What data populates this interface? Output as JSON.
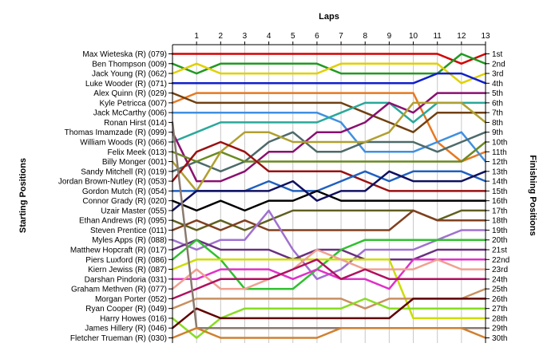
{
  "chart_data": {
    "type": "line",
    "title": "",
    "xlabel": "Laps",
    "ylabel_left": "Starting Positions",
    "ylabel_right": "Finishing Positions",
    "x": [
      0,
      1,
      2,
      3,
      4,
      5,
      6,
      7,
      8,
      9,
      10,
      11,
      12,
      13
    ],
    "x_tick_labels": [
      "1",
      "2",
      "3",
      "4",
      "5",
      "6",
      "7",
      "8",
      "9",
      "10",
      "11",
      "12",
      "13"
    ],
    "xlim": [
      0,
      13
    ],
    "ylim": [
      1,
      30
    ],
    "y_inverted": true,
    "grid": "vertical",
    "starting_labels": [
      "Max Wieteska (R) (079)",
      "Ben Thompson (009)",
      "Jack Young (R) (062)",
      "Luke Wooder (R) (071)",
      "Alex Quinn (R) (029)",
      "Kyle Petricca (007)",
      "Jack McCarthy (006)",
      "Ronan Hirst (014)",
      "Thomas Imamzade (R) (099)",
      "William Woods (R) (066)",
      "Felix Meek (013)",
      "Billy Monger (001)",
      "Sandy Mitchell (R) (019)",
      "Jordan Brown-Nutley (R) (053)",
      "Gordon Mutch (R) (054)",
      "Connor Grady (R) (020)",
      "Uzair Master (055)",
      "Ethan Andrews (R) (095)",
      "Steven Prentice (011)",
      "Myles Apps (R) (088)",
      "Matthew Hopcraft (R) (017)",
      "Piers Luxford (R) (086)",
      "Kiern Jewiss (R) (087)",
      "Darshan Pindoria (031)",
      "Graham Methven (R) (077)",
      "Morgan Porter (052)",
      "Ryan Cooper (R) (049)",
      "Harry Howes (016)",
      "James Hillery (R) (046)",
      "Fletcher Trueman (R) (030)"
    ],
    "finishing_labels": [
      "1st",
      "2nd",
      "3rd",
      "4th",
      "5th",
      "6th",
      "7th",
      "8th",
      "9th",
      "10th",
      "11th",
      "12th",
      "13th",
      "14th",
      "15th",
      "16th",
      "17th",
      "18th",
      "19th",
      "20th",
      "21st",
      "22nd",
      "23rd",
      "24th",
      "25th",
      "26th",
      "27th",
      "28th",
      "29th",
      "30th"
    ],
    "series": [
      {
        "color": "#d40000",
        "values": [
          1,
          1,
          1,
          1,
          1,
          1,
          1,
          1,
          1,
          1,
          1,
          1,
          2,
          1
        ]
      },
      {
        "color": "#229922",
        "values": [
          2,
          3,
          2,
          2,
          2,
          2,
          2,
          3,
          3,
          3,
          3,
          3,
          1,
          2
        ]
      },
      {
        "color": "#e0d000",
        "values": [
          3,
          2,
          3,
          3,
          3,
          3,
          3,
          2,
          2,
          2,
          2,
          2,
          4,
          3
        ]
      },
      {
        "color": "#1020cc",
        "values": [
          4,
          4,
          4,
          4,
          4,
          4,
          4,
          4,
          4,
          4,
          4,
          3,
          3,
          4
        ]
      },
      {
        "color": "#e87820",
        "values": [
          6,
          5,
          5,
          5,
          5,
          5,
          5,
          5,
          5,
          5,
          5,
          10,
          12,
          11
        ]
      },
      {
        "color": "#704010",
        "values": [
          5,
          6,
          6,
          6,
          6,
          6,
          6,
          6,
          7,
          8,
          9,
          7,
          7,
          7
        ]
      },
      {
        "color": "#4090e0",
        "values": [
          7,
          7,
          7,
          7,
          7,
          7,
          7,
          8,
          11,
          11,
          11,
          10,
          9,
          12
        ]
      },
      {
        "color": "#2aa89a",
        "values": [
          10,
          9,
          8,
          8,
          8,
          8,
          8,
          7,
          6,
          6,
          8,
          6,
          6,
          6
        ]
      },
      {
        "color": "#8a1070",
        "values": [
          9,
          14,
          14,
          13,
          11,
          11,
          9,
          9,
          8,
          6,
          7,
          5,
          5,
          5
        ]
      },
      {
        "color": "#4e6a6a",
        "values": [
          13,
          12,
          13,
          12,
          10,
          9,
          11,
          11,
          10,
          10,
          10,
          11,
          10,
          9
        ]
      },
      {
        "color": "#6a8a20",
        "values": [
          11,
          12,
          11,
          12,
          12,
          12,
          12,
          12,
          12,
          12,
          12,
          12,
          12,
          10
        ]
      },
      {
        "color": "#b0a030",
        "values": [
          12,
          15,
          11,
          9,
          9,
          10,
          10,
          10,
          10,
          9,
          6,
          6,
          6,
          8
        ]
      },
      {
        "color": "#9a1010",
        "values": [
          14,
          11,
          10,
          11,
          13,
          13,
          13,
          13,
          14,
          15,
          15,
          15,
          15,
          15
        ]
      },
      {
        "color": "#2060c0",
        "values": [
          15,
          15,
          15,
          15,
          14,
          15,
          15,
          14,
          13,
          14,
          13,
          13,
          13,
          14
        ]
      },
      {
        "color": "#000000",
        "values": [
          16,
          17,
          16,
          17,
          16,
          16,
          15,
          16,
          16,
          16,
          16,
          16,
          16,
          16
        ]
      },
      {
        "color": "#101060",
        "values": [
          17,
          15,
          15,
          15,
          15,
          14,
          16,
          15,
          15,
          13,
          14,
          14,
          14,
          13
        ]
      },
      {
        "color": "#606020",
        "values": [
          18,
          19,
          18,
          19,
          18,
          17,
          17,
          17,
          17,
          17,
          17,
          18,
          17,
          17
        ]
      },
      {
        "color": "#804020",
        "values": [
          19,
          18,
          19,
          18,
          19,
          19,
          19,
          19,
          19,
          19,
          17,
          18,
          18,
          18
        ]
      },
      {
        "color": "#a070d0",
        "values": [
          20,
          21,
          20,
          20,
          17,
          21,
          24,
          23,
          21,
          21,
          21,
          20,
          19,
          19
        ]
      },
      {
        "color": "#6a3080",
        "values": [
          21,
          20,
          21,
          21,
          21,
          22,
          21,
          21,
          22,
          22,
          22,
          21,
          21,
          21
        ]
      },
      {
        "color": "#30c030",
        "values": [
          22,
          20,
          22,
          25,
          25,
          25,
          23,
          21,
          20,
          20,
          20,
          20,
          20,
          20
        ]
      },
      {
        "color": "#ccdd00",
        "values": [
          23,
          22,
          22,
          22,
          22,
          22,
          22,
          22,
          22,
          22,
          28,
          28,
          28,
          28
        ]
      },
      {
        "color": "#e030c8",
        "values": [
          24,
          24,
          23,
          23,
          23,
          24,
          23,
          24,
          24,
          25,
          22,
          22,
          22,
          22
        ]
      },
      {
        "color": "#f0a090",
        "values": [
          25,
          23,
          25,
          25,
          24,
          23,
          21,
          22,
          23,
          23,
          23,
          22,
          23,
          23
        ]
      },
      {
        "color": "#b01060",
        "values": [
          26,
          25,
          24,
          24,
          24,
          23,
          22,
          24,
          23,
          24,
          24,
          24,
          24,
          24
        ]
      },
      {
        "color": "#c89060",
        "values": [
          27,
          26,
          26,
          26,
          26,
          26,
          26,
          26,
          27,
          26,
          26,
          26,
          26,
          25
        ]
      },
      {
        "color": "#88dd22",
        "values": [
          28,
          30,
          28,
          27,
          27,
          27,
          27,
          27,
          26,
          27,
          27,
          27,
          27,
          27
        ]
      },
      {
        "color": "#600000",
        "values": [
          29,
          27,
          28,
          28,
          28,
          28,
          28,
          28,
          28,
          28,
          26,
          26,
          26,
          26
        ]
      },
      {
        "color": "#8a7a70",
        "values": [
          8,
          29,
          29,
          29,
          29,
          29,
          29,
          29,
          29,
          29,
          29,
          29,
          29,
          29
        ]
      },
      {
        "color": "#d08030",
        "values": [
          30,
          29,
          30,
          30,
          30,
          30,
          30,
          29,
          29,
          29,
          29,
          29,
          29,
          30
        ]
      }
    ]
  }
}
